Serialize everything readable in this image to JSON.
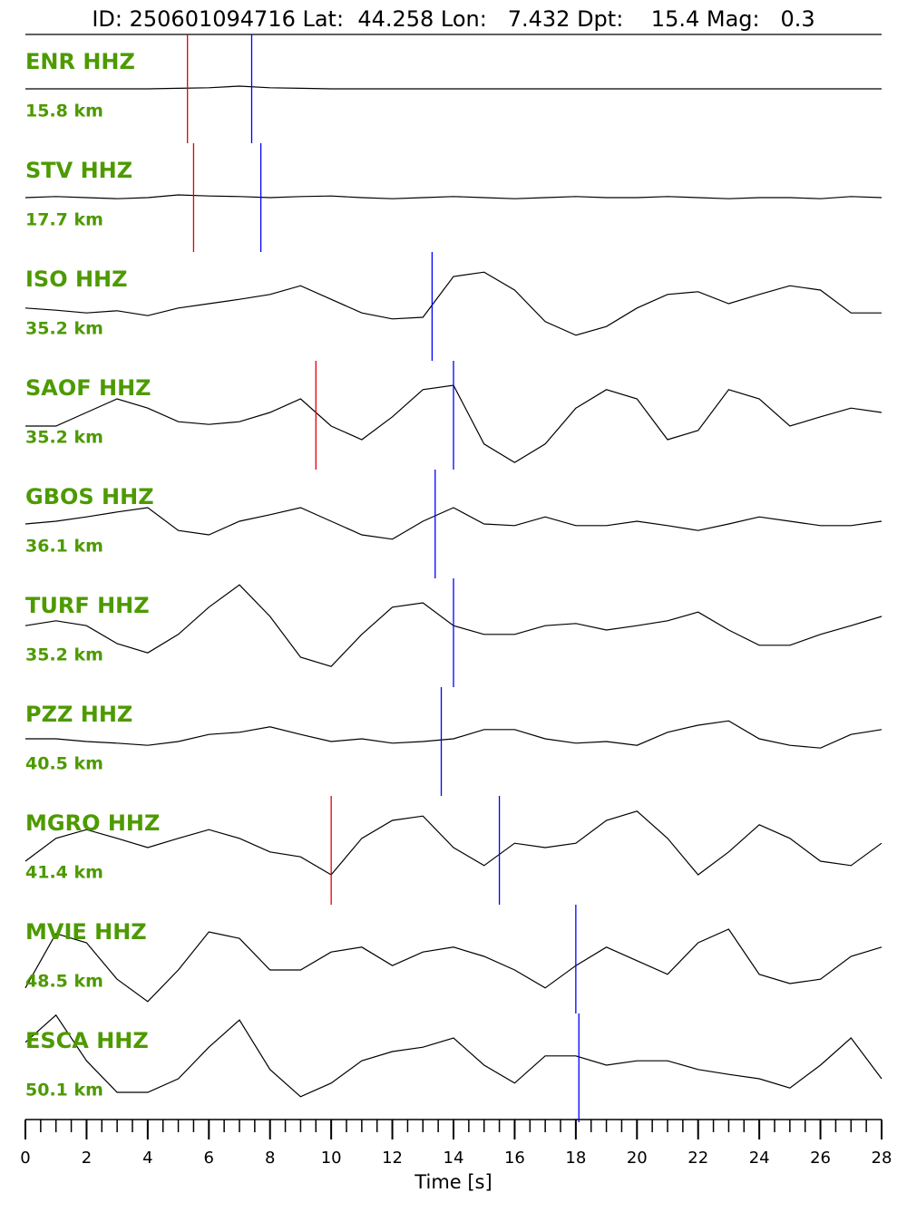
{
  "chart_data": {
    "type": "seismogram",
    "title": "ID: 250601094716 Lat:  44.258 Lon:   7.432 Dpt:    15.4 Mag:   0.3",
    "xlabel": "Time [s]",
    "xlim": [
      0,
      28
    ],
    "xticks": [
      0,
      2,
      4,
      6,
      8,
      10,
      12,
      14,
      16,
      18,
      20,
      22,
      24,
      26,
      28
    ],
    "xminor_step": 0.5,
    "label_color": "#4d9a00",
    "p_color": "#e00000",
    "s_color": "#0000ff",
    "x": [
      0,
      1,
      2,
      3,
      4,
      5,
      6,
      7,
      8,
      9,
      10,
      11,
      12,
      13,
      14,
      15,
      16,
      17,
      18,
      19,
      20,
      21,
      22,
      23,
      24,
      25,
      26,
      27,
      28
    ],
    "series": [
      {
        "name": "ENR HHZ",
        "distance": "15.8 km",
        "color": "#000000",
        "p_pick": 5.3,
        "s_pick": 7.4,
        "values": [
          0,
          0,
          0,
          0,
          0,
          0.01,
          0.02,
          0.05,
          0.02,
          0.01,
          0,
          0,
          0,
          0,
          0,
          0,
          0,
          0,
          0,
          0,
          0,
          0,
          0,
          0,
          0,
          0,
          0,
          0,
          0
        ]
      },
      {
        "name": "STV HHZ",
        "distance": "17.7 km",
        "color": "#000000",
        "p_pick": 5.5,
        "s_pick": 7.7,
        "values": [
          0,
          0.02,
          0,
          -0.02,
          0,
          0.05,
          0.03,
          0.02,
          0,
          0.02,
          0.03,
          0,
          -0.02,
          0,
          0.02,
          0,
          -0.02,
          0,
          0.02,
          0,
          0,
          0.02,
          0,
          -0.02,
          0,
          0,
          -0.02,
          0.02,
          0
        ]
      },
      {
        "name": "ISO HHZ",
        "distance": "35.2 km",
        "color": "#000000",
        "p_pick": null,
        "s_pick": 13.3,
        "values": [
          -0.03,
          -0.07,
          -0.12,
          -0.08,
          -0.17,
          -0.03,
          0.05,
          0.13,
          0.22,
          0.38,
          0.13,
          -0.12,
          -0.23,
          -0.2,
          0.55,
          0.63,
          0.3,
          -0.28,
          -0.53,
          -0.37,
          -0.03,
          0.22,
          0.27,
          0.05,
          0.22,
          0.38,
          0.3,
          -0.12,
          -0.12
        ]
      },
      {
        "name": "SAOF HHZ",
        "distance": "35.2 km",
        "color": "#000000",
        "p_pick": 9.5,
        "s_pick": 14.0,
        "values": [
          -0.2,
          -0.2,
          0.05,
          0.3,
          0.13,
          -0.12,
          -0.17,
          -0.12,
          0.05,
          0.3,
          -0.2,
          -0.45,
          -0.03,
          0.47,
          0.55,
          -0.53,
          -0.87,
          -0.53,
          0.13,
          0.47,
          0.3,
          -0.45,
          -0.28,
          0.47,
          0.3,
          -0.2,
          -0.03,
          0.13,
          0.05
        ]
      },
      {
        "name": "GBOS HHZ",
        "distance": "36.1 km",
        "color": "#000000",
        "p_pick": null,
        "s_pick": 13.4,
        "values": [
          0,
          0.05,
          0.13,
          0.22,
          0.3,
          -0.12,
          -0.2,
          0.05,
          0.17,
          0.3,
          0.05,
          -0.2,
          -0.28,
          0.05,
          0.3,
          0,
          -0.03,
          0.13,
          -0.03,
          -0.03,
          0.05,
          -0.03,
          -0.12,
          0,
          0.13,
          0.05,
          -0.03,
          -0.03,
          0.05
        ]
      },
      {
        "name": "TURF HHZ",
        "distance": "35.2 km",
        "color": "#000000",
        "p_pick": null,
        "s_pick": 14.0,
        "values": [
          0.13,
          0.22,
          0.13,
          -0.2,
          -0.37,
          -0.03,
          0.47,
          0.88,
          0.3,
          -0.45,
          -0.62,
          -0.03,
          0.47,
          0.55,
          0.13,
          -0.03,
          -0.03,
          0.13,
          0.17,
          0.05,
          0.13,
          0.22,
          0.38,
          0.05,
          -0.23,
          -0.23,
          -0.03,
          0.13,
          0.3
        ]
      },
      {
        "name": "PZZ HHZ",
        "distance": "40.5 km",
        "color": "#000000",
        "p_pick": null,
        "s_pick": 13.6,
        "values": [
          0.05,
          0.05,
          0,
          -0.03,
          -0.07,
          0,
          0.13,
          0.17,
          0.27,
          0.13,
          0,
          0.05,
          -0.03,
          0,
          0.05,
          0.22,
          0.22,
          0.05,
          -0.03,
          0,
          -0.07,
          0.17,
          0.3,
          0.38,
          0.05,
          -0.07,
          -0.12,
          0.13,
          0.22
        ]
      },
      {
        "name": "MGRO HHZ",
        "distance": "41.4 km",
        "color": "#000000",
        "p_pick": 10.0,
        "s_pick": 15.5,
        "values": [
          -0.2,
          0.22,
          0.38,
          0.22,
          0.05,
          0.22,
          0.38,
          0.22,
          -0.03,
          -0.12,
          -0.45,
          0.22,
          0.55,
          0.63,
          0.05,
          -0.28,
          0.13,
          0.05,
          0.13,
          0.55,
          0.72,
          0.22,
          -0.45,
          -0.03,
          0.47,
          0.22,
          -0.2,
          -0.28,
          0.13
        ]
      },
      {
        "name": "MVIE HHZ",
        "distance": "48.5 km",
        "color": "#000000",
        "p_pick": null,
        "s_pick": 18.0,
        "values": [
          -0.53,
          0.47,
          0.3,
          -0.37,
          -0.78,
          -0.2,
          0.5,
          0.38,
          -0.2,
          -0.2,
          0.13,
          0.22,
          -0.12,
          0.13,
          0.22,
          0.05,
          -0.2,
          -0.53,
          -0.12,
          0.22,
          -0.03,
          -0.28,
          0.3,
          0.55,
          -0.28,
          -0.45,
          -0.37,
          0.05,
          0.22
        ]
      },
      {
        "name": "ESCA HHZ",
        "distance": "50.1 km",
        "color": "#000000",
        "p_pick": null,
        "s_pick": 18.1,
        "values": [
          0.47,
          0.97,
          0.13,
          -0.45,
          -0.45,
          -0.2,
          0.38,
          0.88,
          -0.03,
          -0.53,
          -0.28,
          0.13,
          0.3,
          0.38,
          0.55,
          0.05,
          -0.28,
          0.22,
          0.22,
          0.05,
          0.13,
          0.13,
          -0.03,
          -0.12,
          -0.2,
          -0.37,
          0.05,
          0.55,
          -0.2
        ]
      }
    ]
  }
}
